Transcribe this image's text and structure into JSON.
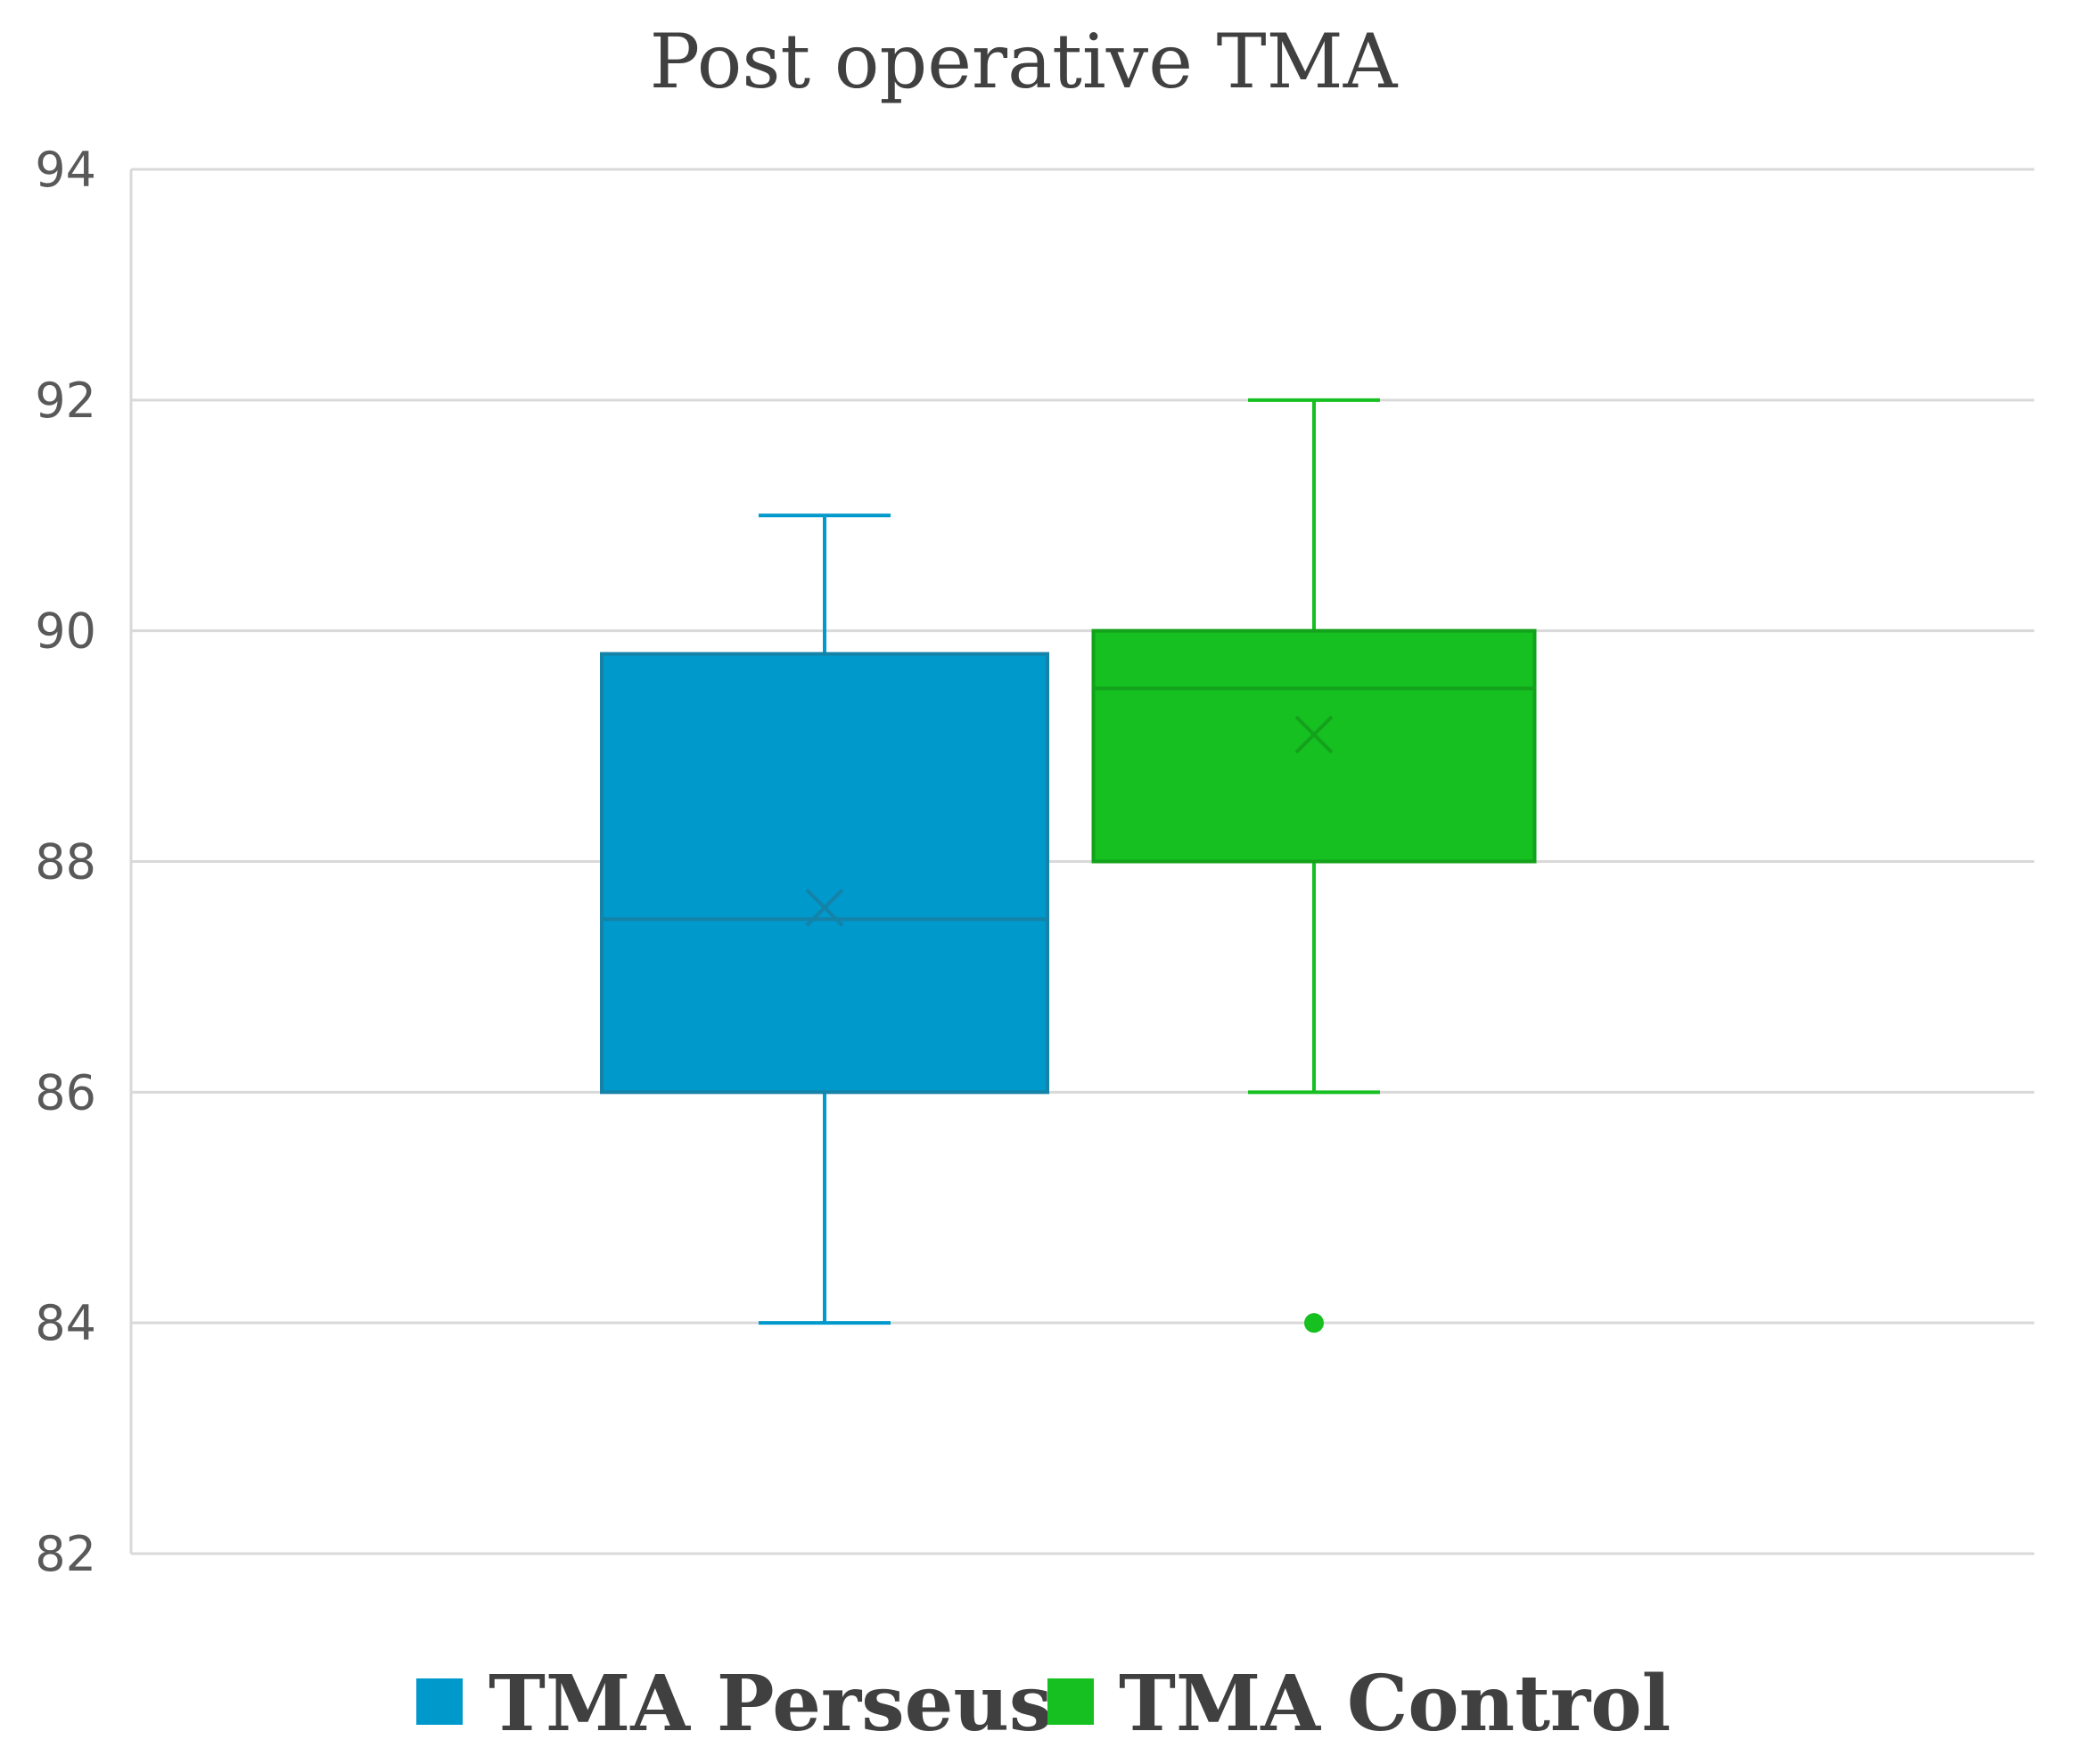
{
  "chart_data": {
    "type": "box",
    "title": "Post operative TMA",
    "xlabel": "",
    "ylabel": "",
    "ylim": [
      82,
      94
    ],
    "yticks": [
      "82",
      "84",
      "86",
      "88",
      "90",
      "92",
      "94"
    ],
    "grid": true,
    "legend_position": "bottom",
    "series": [
      {
        "name": "TMA Perseus",
        "color": "#0099CC",
        "whisker_min": 84,
        "q1": 86,
        "median": 87.5,
        "mean": 87.6,
        "q3": 89.8,
        "whisker_max": 91,
        "outliers": []
      },
      {
        "name": "TMA Control",
        "color": "#15C020",
        "whisker_min": 86,
        "q1": 88,
        "median": 89.5,
        "mean": 89.1,
        "q3": 90,
        "whisker_max": 92,
        "outliers": [
          84
        ]
      }
    ]
  }
}
